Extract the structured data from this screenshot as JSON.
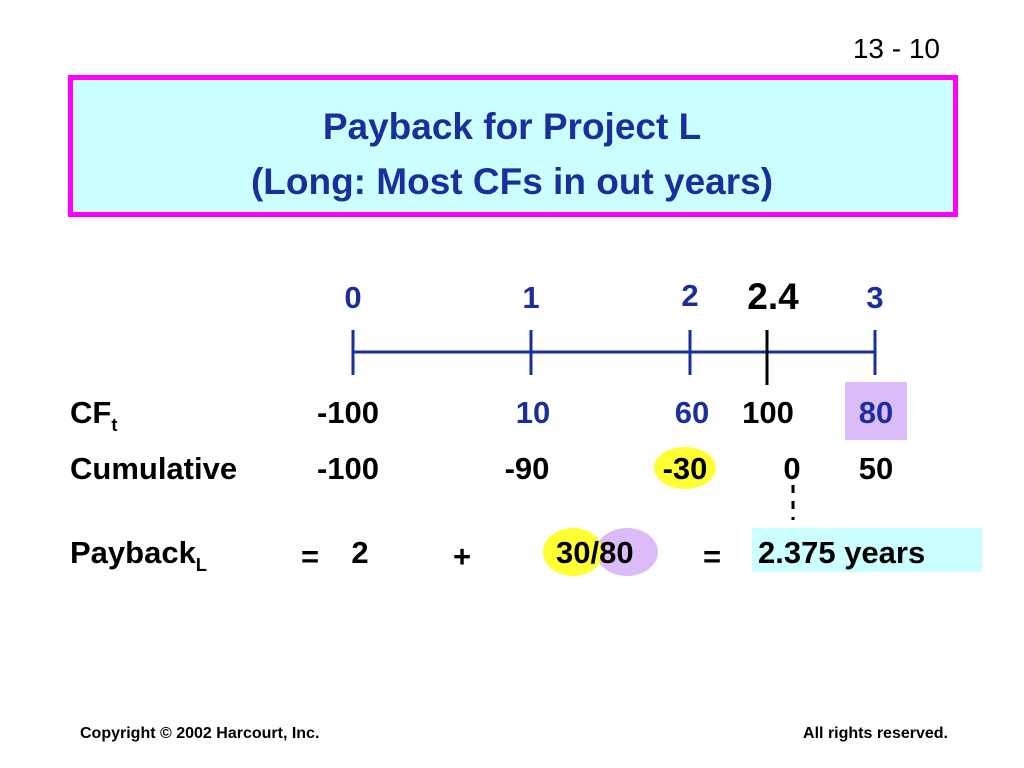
{
  "slide_number": "13 - 10",
  "title": {
    "line1": "Payback for Project L",
    "line2": "(Long:  Most CFs in out years)"
  },
  "timeline": {
    "labels": [
      "0",
      "1",
      "2",
      "2.4",
      "3"
    ]
  },
  "cf_row": {
    "label": "CF",
    "subscript": "t",
    "values": [
      "-100",
      "10",
      "60",
      "100",
      "80"
    ]
  },
  "cumulative_row": {
    "label": "Cumulative",
    "values": [
      "-100",
      "-90",
      "-30",
      "0",
      "50"
    ]
  },
  "payback": {
    "label": "Payback",
    "subscript": "L",
    "equals1": "=",
    "term1": "2",
    "plus": "+",
    "numerator": "30",
    "slash": "/",
    "denominator": "80",
    "equals2": "=",
    "result": "2.375 years"
  },
  "footer": {
    "left": "Copyright © 2002 Harcourt, Inc.",
    "right": "All rights reserved."
  }
}
